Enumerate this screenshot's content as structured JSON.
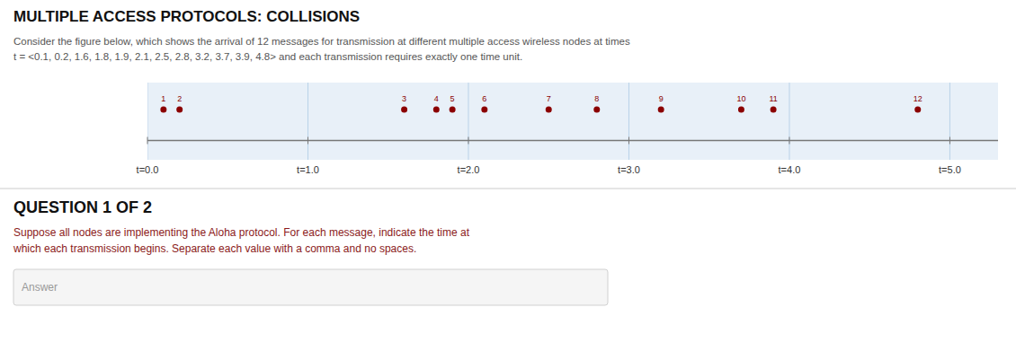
{
  "chart_data": {
    "type": "timeline",
    "title": "MULTIPLE ACCESS PROTOCOLS: COLLISIONS",
    "subtitle": [
      "Consider the figure below, which shows the arrival of 12 messages for transmission at different multiple access wireless nodes at times",
      "t = <0.1, 0.2, 1.6, 1.8, 1.9, 2.1, 2.5, 2.8, 3.2, 3.7, 3.9, 4.8> and each transmission requires exactly one time unit."
    ],
    "categories": [
      "1",
      "2",
      "3",
      "4",
      "5",
      "6",
      "7",
      "8",
      "9",
      "10",
      "11",
      "12"
    ],
    "values": [
      0.1,
      0.2,
      1.6,
      1.8,
      1.9,
      2.1,
      2.5,
      2.8,
      3.2,
      3.7,
      3.9,
      4.8
    ],
    "color": "#8B0000",
    "xlim": [
      0.0,
      5.3
    ],
    "xticks": [
      {
        "value": 0.0,
        "label": "t=0.0"
      },
      {
        "value": 1.0,
        "label": "t=1.0"
      },
      {
        "value": 2.0,
        "label": "t=2.0"
      },
      {
        "value": 3.0,
        "label": "t=3.0"
      },
      {
        "value": 4.0,
        "label": "t=4.0"
      },
      {
        "value": 5.0,
        "label": "t=5.0"
      }
    ],
    "grid": true,
    "annotations": [
      "QUESTION 1 OF 2",
      "Suppose all nodes are implementing the Aloha protocol. For each message, indicate the time at",
      "which each transmission begins. Separate each value with a comma and no spaces.",
      "Answer"
    ]
  }
}
